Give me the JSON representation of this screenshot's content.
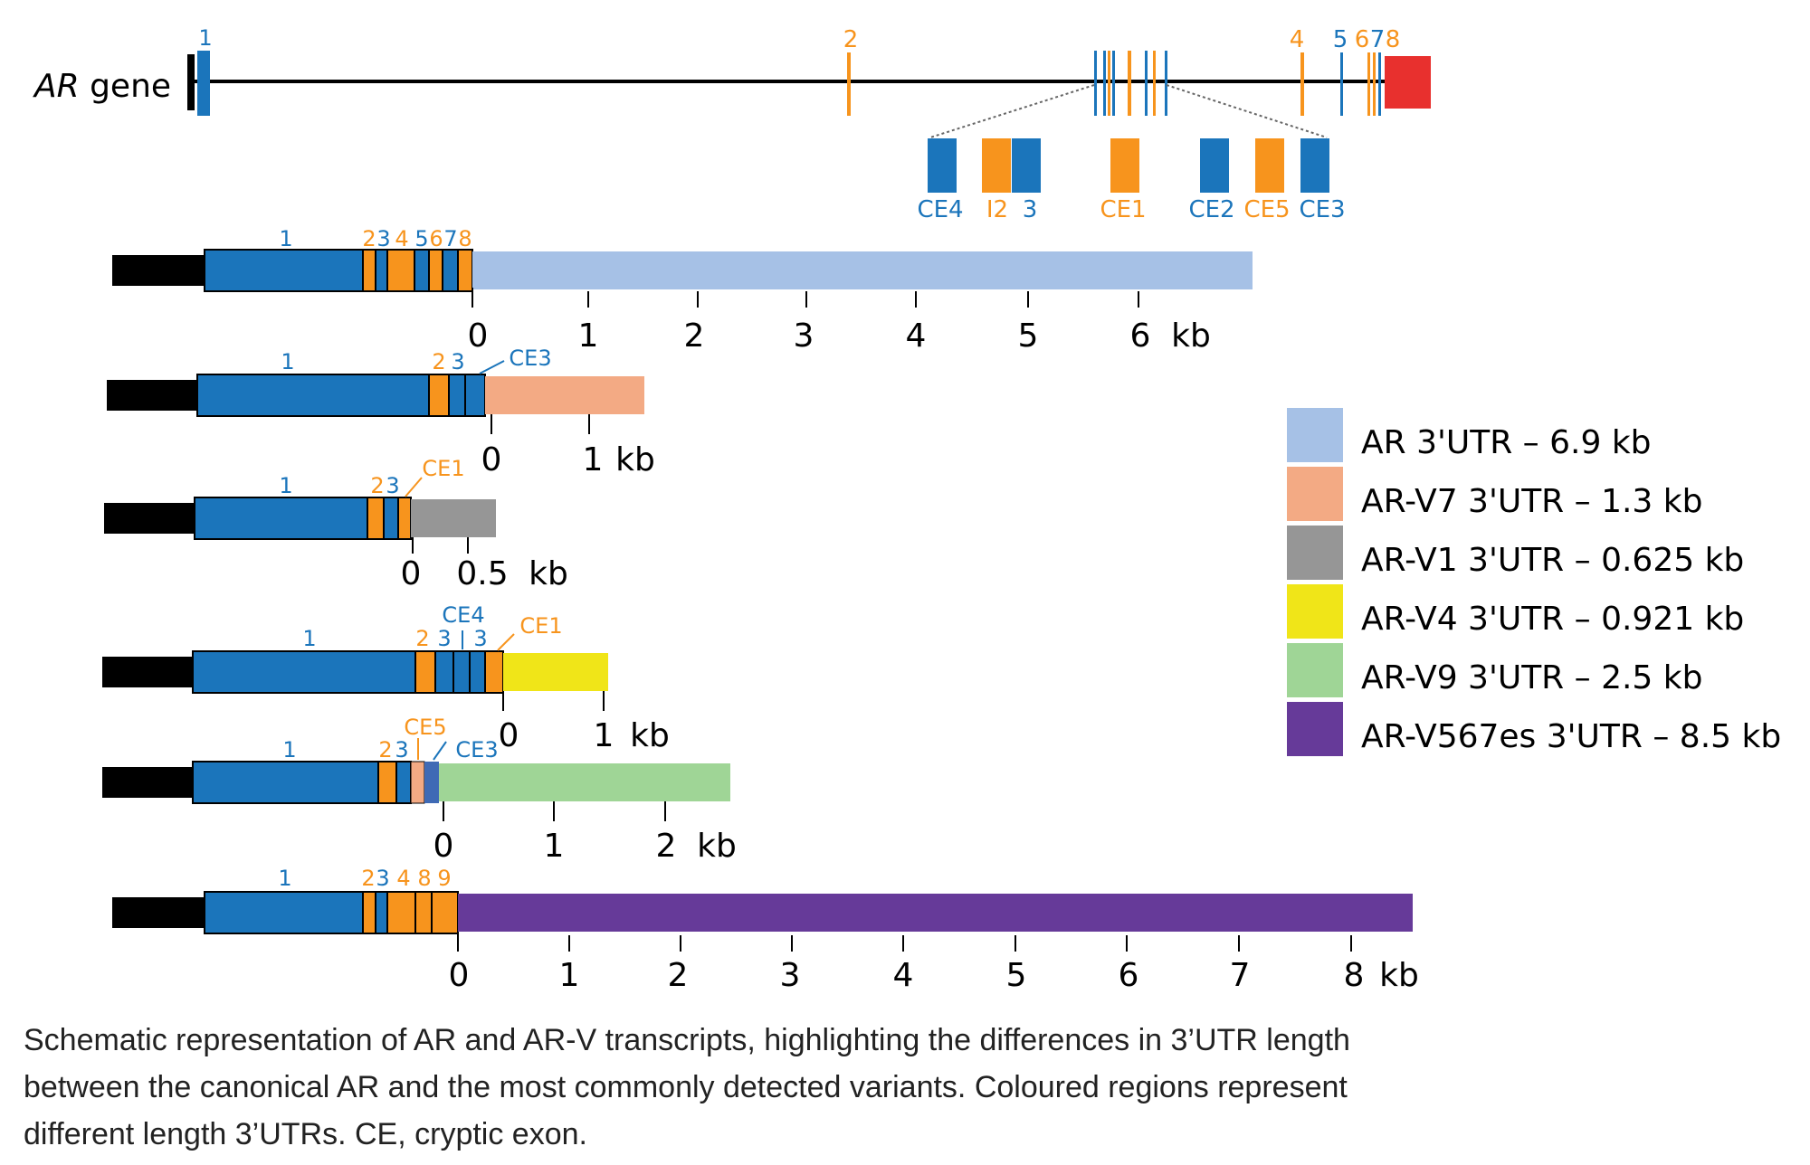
{
  "colors": {
    "exon_blue": "#1b75bb",
    "exon_orange": "#f7941d",
    "utr_ar": "#a6c1e6",
    "utr_v7": "#f3aa84",
    "utr_v1": "#969696",
    "utr_v4": "#f0e518",
    "utr_v9": "#9fd596",
    "utr_v567es": "#663a99",
    "terminal_red": "#e8302e"
  },
  "gene": {
    "label_italic": "AR",
    "label_rest": " gene",
    "exon_labels": [
      "1",
      "2",
      "4",
      "5",
      "6",
      "7",
      "8"
    ],
    "inset_labels": [
      "CE4",
      "I2",
      "3",
      "CE1",
      "CE2",
      "CE5",
      "CE3"
    ]
  },
  "transcripts": [
    {
      "exon_labels": [
        "1",
        "2",
        "3",
        "4",
        "5",
        "6",
        "7",
        "8"
      ],
      "ticks": [
        "0",
        "1",
        "2",
        "3",
        "4",
        "5",
        "6"
      ],
      "unit": "kb"
    },
    {
      "exon_labels": [
        "1",
        "2",
        "3",
        "CE3"
      ],
      "ticks": [
        "0",
        "1"
      ],
      "unit": "kb"
    },
    {
      "exon_labels": [
        "1",
        "2",
        "3",
        "CE1"
      ],
      "ticks": [
        "0",
        "0.5"
      ],
      "unit": "kb"
    },
    {
      "exon_labels": [
        "1",
        "2",
        "3",
        "CE4",
        "3",
        "CE1"
      ],
      "ticks": [
        "0",
        "1"
      ],
      "unit": "kb"
    },
    {
      "exon_labels": [
        "1",
        "2",
        "3",
        "CE5",
        "CE3"
      ],
      "ticks": [
        "0",
        "1",
        "2"
      ],
      "unit": "kb"
    },
    {
      "exon_labels": [
        "1",
        "2",
        "3",
        "4",
        "8",
        "9"
      ],
      "ticks": [
        "0",
        "1",
        "2",
        "3",
        "4",
        "5",
        "6",
        "7",
        "8"
      ],
      "unit": "kb"
    }
  ],
  "legend": [
    {
      "label": "AR 3'UTR – 6.9 kb",
      "color": "#a6c1e6",
      "kb": 6.9
    },
    {
      "label": "AR-V7 3'UTR – 1.3 kb",
      "color": "#f3aa84",
      "kb": 1.3
    },
    {
      "label": "AR-V1 3'UTR – 0.625 kb",
      "color": "#969696",
      "kb": 0.625
    },
    {
      "label": "AR-V4 3'UTR – 0.921 kb",
      "color": "#f0e518",
      "kb": 0.921
    },
    {
      "label": "AR-V9 3'UTR – 2.5 kb",
      "color": "#9fd596",
      "kb": 2.5
    },
    {
      "label": "AR-V567es 3'UTR – 8.5 kb",
      "color": "#663a99",
      "kb": 8.5
    }
  ],
  "caption": {
    "line1": "Schematic representation of AR and AR-V transcripts, highlighting the differences in 3’UTR length",
    "line2": "between the canonical AR and the most commonly detected variants. Coloured regions represent",
    "line3": "different length 3’UTRs. CE, cryptic exon."
  }
}
